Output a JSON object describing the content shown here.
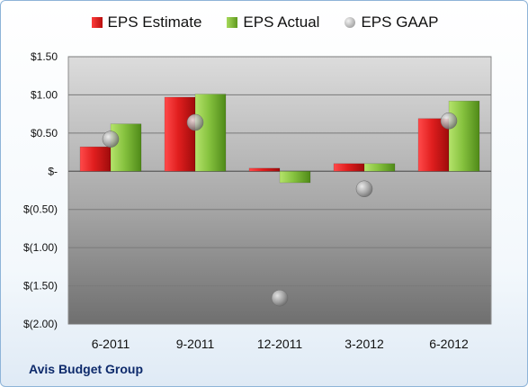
{
  "legend": {
    "estimate": "EPS Estimate",
    "actual": "EPS Actual",
    "gaap": "EPS GAAP"
  },
  "company": "Avis Budget Group",
  "colors": {
    "estimate": "#d42020",
    "actual": "#7fb83a",
    "gaap": "#9a9a9a"
  },
  "chart_data": {
    "type": "bar",
    "categories": [
      "6-2011",
      "9-2011",
      "12-2011",
      "3-2012",
      "6-2012"
    ],
    "series": [
      {
        "name": "EPS Estimate",
        "values": [
          0.32,
          0.97,
          0.04,
          0.1,
          0.69
        ]
      },
      {
        "name": "EPS Actual",
        "values": [
          0.62,
          1.01,
          -0.15,
          0.1,
          0.92
        ]
      },
      {
        "name": "EPS GAAP",
        "type": "scatter",
        "values": [
          0.42,
          0.64,
          -1.66,
          -0.23,
          0.66
        ]
      }
    ],
    "ylim": [
      -2.0,
      1.5
    ],
    "yticks": [
      1.5,
      1.0,
      0.5,
      0,
      -0.5,
      -1.0,
      -1.5,
      -2.0
    ],
    "ytick_labels": [
      "$1.50",
      "$1.00",
      "$0.50",
      "$-",
      "$(0.50)",
      "$(1.00)",
      "$(1.50)",
      "$(2.00)"
    ],
    "grid": true,
    "legend_position": "top"
  }
}
